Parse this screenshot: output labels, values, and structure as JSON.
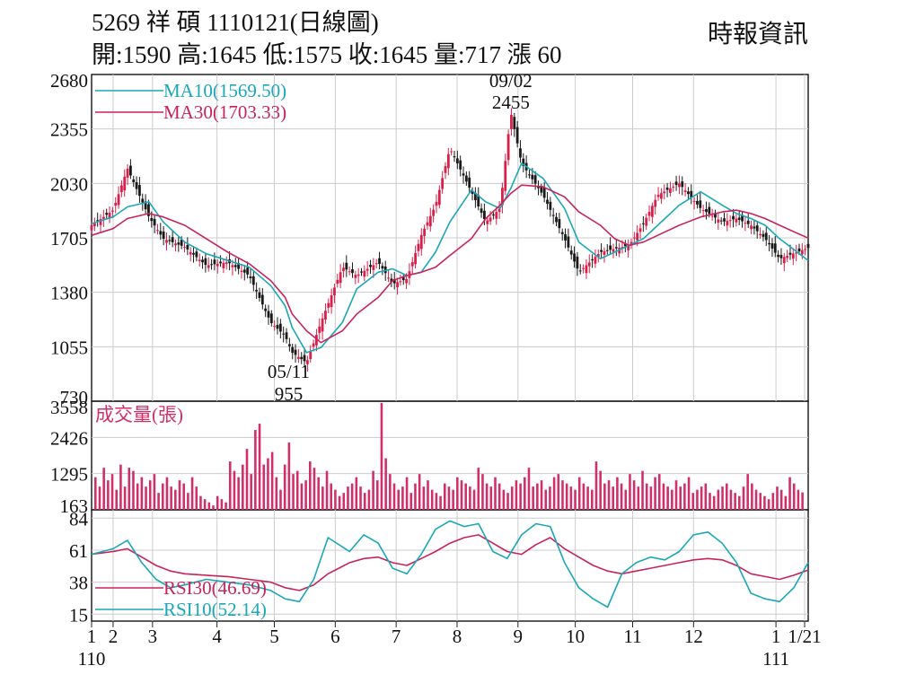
{
  "header": {
    "title": "5269  祥  碩 1110121(日線圖)",
    "stats": "開:1590 高:1645 低:1575 收:1645 量:717 漲 60",
    "source": "時報資訊"
  },
  "colors": {
    "ma10": "#1aa7b8",
    "ma30": "#c8235a",
    "rsi30": "#c8235a",
    "rsi10": "#1aa7b8",
    "up": "#d8204a",
    "down": "#1a1a1a",
    "volume": "#d0306a",
    "grid": "#cccccc"
  },
  "chart_data": [
    {
      "type": "line",
      "panel": "price",
      "ylim": [
        730,
        2680
      ],
      "yticks": [
        2680,
        2355,
        2030,
        1705,
        1380,
        1055,
        730
      ],
      "legend": [
        {
          "name": "MA10",
          "label": "MA10(1569.50)",
          "color": "#1aa7b8"
        },
        {
          "name": "MA30",
          "label": "MA30(1703.33)",
          "color": "#c8235a"
        }
      ],
      "annotations": {
        "high": {
          "date": "09/02",
          "value": "2455",
          "t": 0.585
        },
        "low": {
          "date": "05/11",
          "value": "955",
          "t": 0.275
        }
      },
      "x": [
        0.0,
        0.03,
        0.05,
        0.08,
        0.1,
        0.13,
        0.16,
        0.19,
        0.22,
        0.25,
        0.27,
        0.28,
        0.3,
        0.32,
        0.35,
        0.37,
        0.4,
        0.42,
        0.44,
        0.46,
        0.48,
        0.5,
        0.53,
        0.55,
        0.57,
        0.585,
        0.6,
        0.63,
        0.66,
        0.68,
        0.71,
        0.73,
        0.75,
        0.77,
        0.79,
        0.82,
        0.85,
        0.88,
        0.9,
        0.92,
        0.94,
        0.96,
        1.0
      ],
      "series": [
        {
          "name": "Close",
          "values": [
            1780,
            1870,
            2120,
            1830,
            1700,
            1650,
            1540,
            1560,
            1480,
            1200,
            1120,
            1020,
            960,
            1200,
            1530,
            1480,
            1560,
            1430,
            1460,
            1720,
            1900,
            2240,
            1980,
            1800,
            1880,
            2455,
            2150,
            1960,
            1700,
            1500,
            1620,
            1640,
            1660,
            1790,
            1960,
            2030,
            1880,
            1800,
            1820,
            1780,
            1700,
            1580,
            1645
          ]
        },
        {
          "name": "MA10",
          "values": [
            1790,
            1830,
            1890,
            1920,
            1800,
            1680,
            1610,
            1570,
            1530,
            1420,
            1300,
            1170,
            1020,
            1050,
            1200,
            1400,
            1500,
            1520,
            1480,
            1500,
            1620,
            1800,
            1990,
            1920,
            1880,
            2000,
            2150,
            2060,
            1880,
            1680,
            1580,
            1620,
            1660,
            1700,
            1780,
            1900,
            1980,
            1900,
            1850,
            1820,
            1780,
            1700,
            1569.5
          ]
        },
        {
          "name": "MA30",
          "values": [
            1720,
            1760,
            1820,
            1850,
            1830,
            1780,
            1700,
            1620,
            1550,
            1450,
            1350,
            1250,
            1150,
            1080,
            1150,
            1250,
            1350,
            1450,
            1480,
            1500,
            1530,
            1600,
            1700,
            1820,
            1900,
            1970,
            2020,
            2010,
            1950,
            1860,
            1780,
            1700,
            1660,
            1680,
            1720,
            1780,
            1830,
            1860,
            1870,
            1850,
            1820,
            1780,
            1703.33
          ]
        }
      ]
    },
    {
      "type": "bar",
      "panel": "volume",
      "title": "成交量(張)",
      "ylim": [
        163,
        3558
      ],
      "yticks": [
        3558,
        2426,
        1295,
        163
      ],
      "values": [
        1200,
        900,
        1500,
        1100,
        1300,
        800,
        1600,
        900,
        1500,
        1400,
        1000,
        1200,
        900,
        1100,
        1300,
        700,
        1000,
        1200,
        900,
        800,
        1100,
        1000,
        700,
        1200,
        900,
        600,
        500,
        400,
        300,
        600,
        500,
        400,
        1700,
        1400,
        1200,
        1600,
        2100,
        1300,
        2700,
        2900,
        1600,
        1800,
        2000,
        1200,
        800,
        1600,
        2300,
        1300,
        1400,
        1000,
        1100,
        1700,
        1500,
        1200,
        900,
        1400,
        1000,
        800,
        600,
        700,
        900,
        1000,
        1200,
        900,
        700,
        800,
        1400,
        1100,
        3558,
        1800,
        1300,
        1000,
        800,
        900,
        1200,
        700,
        1000,
        1300,
        900,
        1100,
        800,
        700,
        600,
        1000,
        900,
        800,
        1200,
        1100,
        1000,
        900,
        800,
        1500,
        1300,
        1000,
        900,
        1200,
        1000,
        800,
        700,
        900,
        1100,
        1000,
        1200,
        1500,
        900,
        1000,
        1100,
        800,
        900,
        1200,
        1300,
        1100,
        1000,
        900,
        800,
        1200,
        1000,
        900,
        800,
        1700,
        1400,
        1000,
        1100,
        900,
        1200,
        1000,
        800,
        1300,
        1100,
        900,
        1400,
        1000,
        900,
        1200,
        1300,
        1000,
        900,
        800,
        1100,
        900,
        1000,
        1200,
        700,
        800,
        900,
        1000,
        700,
        600,
        800,
        900,
        1000,
        800,
        700,
        600,
        900,
        1300,
        1000,
        800,
        700,
        600,
        500,
        700,
        900,
        800,
        600,
        1200,
        1000,
        800,
        717
      ]
    },
    {
      "type": "line",
      "panel": "rsi",
      "ylim": [
        10,
        90
      ],
      "yticks": [
        84,
        61,
        38,
        15
      ],
      "legend": [
        {
          "name": "RSI30",
          "label": "RSI30(46.69)",
          "color": "#c8235a"
        },
        {
          "name": "RSI10",
          "label": "RSI10(52.14)",
          "color": "#1aa7b8"
        }
      ],
      "x": [
        0.0,
        0.03,
        0.05,
        0.07,
        0.09,
        0.11,
        0.13,
        0.16,
        0.19,
        0.22,
        0.25,
        0.27,
        0.29,
        0.31,
        0.33,
        0.36,
        0.38,
        0.4,
        0.42,
        0.44,
        0.46,
        0.48,
        0.5,
        0.52,
        0.54,
        0.56,
        0.58,
        0.6,
        0.62,
        0.64,
        0.66,
        0.68,
        0.7,
        0.72,
        0.74,
        0.76,
        0.78,
        0.8,
        0.82,
        0.84,
        0.86,
        0.88,
        0.9,
        0.92,
        0.94,
        0.96,
        0.98,
        1.0
      ],
      "series": [
        {
          "name": "RSI30",
          "values": [
            58,
            60,
            62,
            56,
            50,
            46,
            44,
            43,
            42,
            40,
            38,
            34,
            32,
            36,
            44,
            52,
            55,
            56,
            52,
            50,
            55,
            60,
            66,
            70,
            72,
            66,
            60,
            58,
            65,
            70,
            62,
            56,
            50,
            46,
            44,
            46,
            48,
            50,
            52,
            54,
            55,
            54,
            50,
            44,
            42,
            40,
            43,
            46.69
          ]
        },
        {
          "name": "RSI10",
          "values": [
            58,
            62,
            68,
            52,
            40,
            34,
            36,
            40,
            38,
            36,
            32,
            26,
            24,
            40,
            70,
            60,
            72,
            66,
            48,
            44,
            58,
            76,
            82,
            78,
            80,
            60,
            55,
            72,
            80,
            78,
            52,
            34,
            26,
            20,
            44,
            52,
            56,
            54,
            60,
            72,
            74,
            66,
            52,
            30,
            26,
            24,
            34,
            52.14
          ]
        }
      ]
    }
  ],
  "x_axis": {
    "ticks": [
      {
        "label": "1",
        "t": 0.0
      },
      {
        "label": "2",
        "t": 0.03
      },
      {
        "label": "3",
        "t": 0.085
      },
      {
        "label": "4",
        "t": 0.175
      },
      {
        "label": "5",
        "t": 0.255
      },
      {
        "label": "6",
        "t": 0.34
      },
      {
        "label": "7",
        "t": 0.425
      },
      {
        "label": "8",
        "t": 0.51
      },
      {
        "label": "9",
        "t": 0.595
      },
      {
        "label": "10",
        "t": 0.675
      },
      {
        "label": "11",
        "t": 0.755
      },
      {
        "label": "12",
        "t": 0.84
      },
      {
        "label": "1",
        "t": 0.955
      },
      {
        "label": "1/21",
        "t": 0.995
      }
    ],
    "years": [
      {
        "label": "110",
        "t": 0.0
      },
      {
        "label": "111",
        "t": 0.955
      }
    ]
  }
}
